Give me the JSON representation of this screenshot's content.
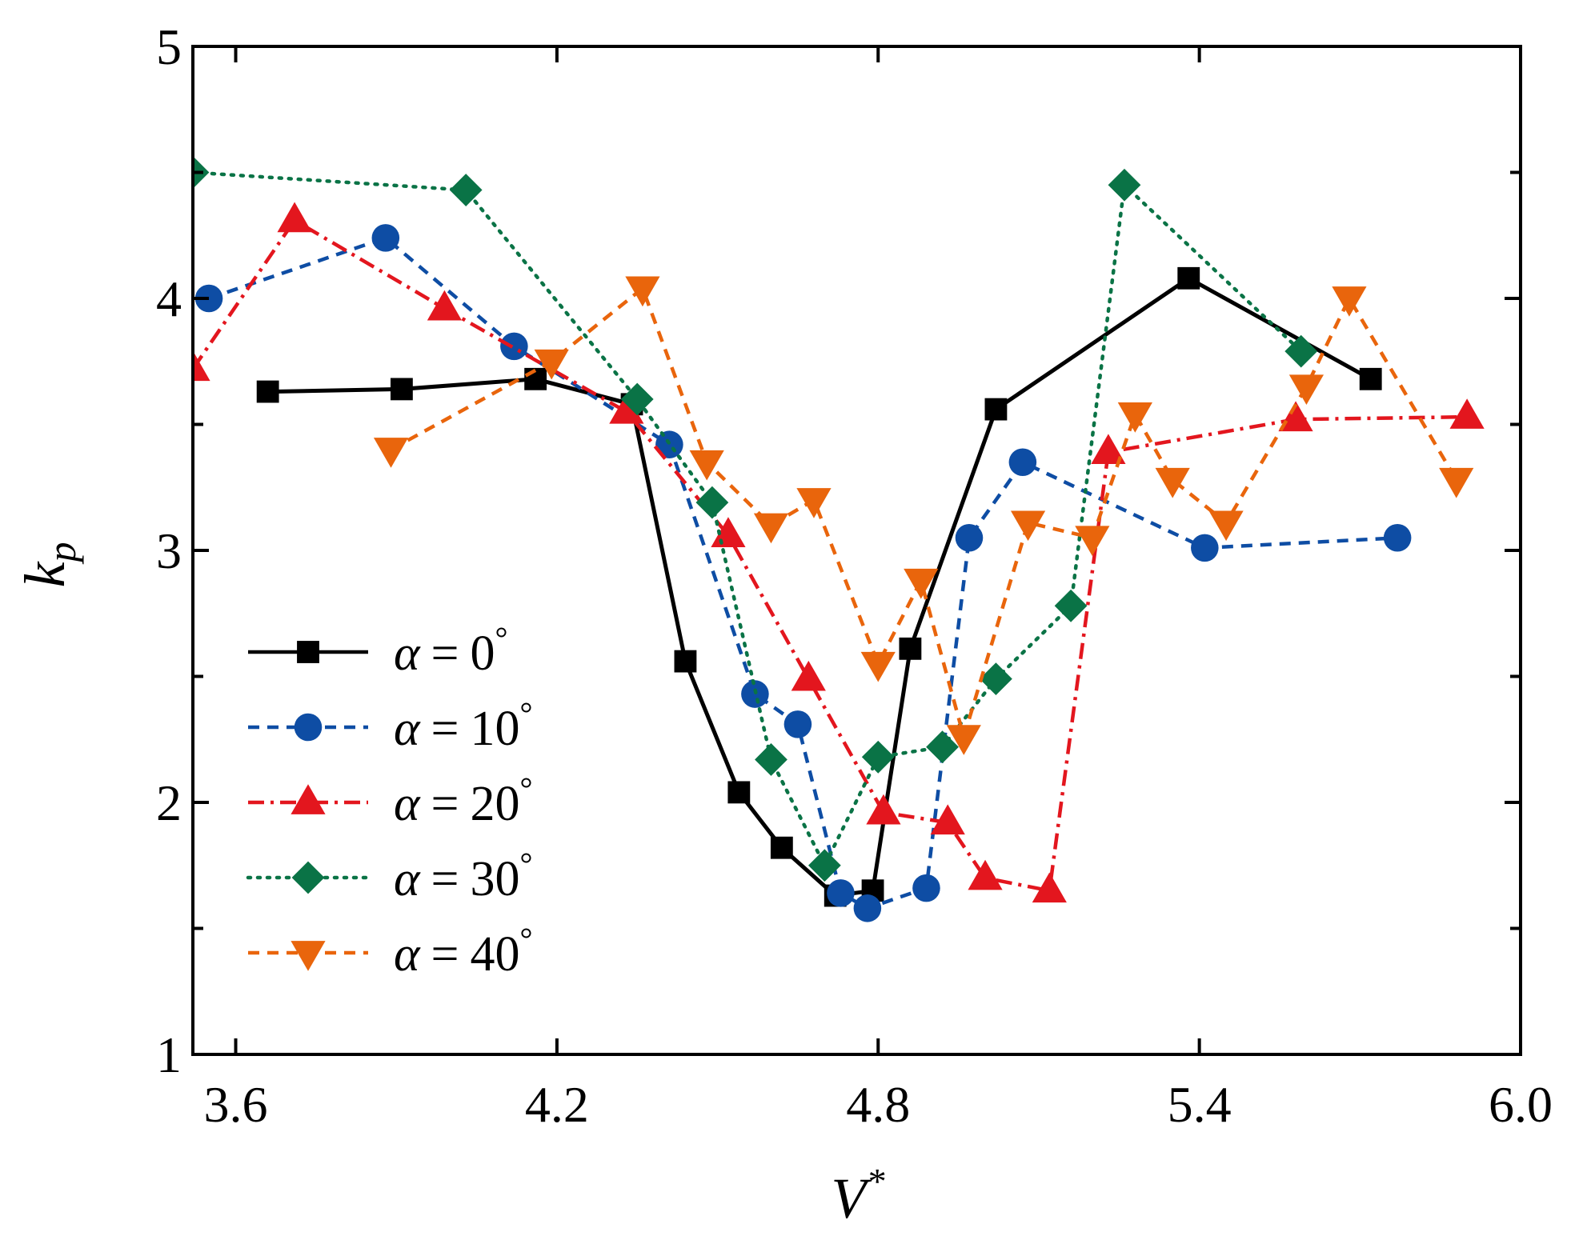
{
  "chart_data": {
    "type": "line",
    "title": "",
    "xlabel": "V",
    "xlabel_superscript": "*",
    "ylabel": "k",
    "ylabel_subscript": "p",
    "xlim": [
      3.52,
      6.0
    ],
    "ylim": [
      1,
      5
    ],
    "xticks": [
      3.6,
      4.2,
      4.8,
      5.4,
      6.0
    ],
    "xtick_labels": [
      "3.6",
      "4.2",
      "4.8",
      "5.4",
      "6.0"
    ],
    "yticks": [
      1,
      2,
      3,
      4,
      5
    ],
    "ytick_labels": [
      "1",
      "2",
      "3",
      "4",
      "5"
    ],
    "minor_y_step": 0.5,
    "grid": false,
    "legend_position": "lower-left",
    "series": [
      {
        "name": "α = 0°",
        "symbol": "α",
        "eq": "=",
        "value": "0",
        "color": "#000000",
        "marker": "square",
        "dash": "",
        "x": [
          3.66,
          3.91,
          4.16,
          4.34,
          4.44,
          4.54,
          4.62,
          4.72,
          4.79,
          4.86,
          5.02,
          5.38,
          5.72
        ],
        "y": [
          3.63,
          3.64,
          3.68,
          3.58,
          2.56,
          2.04,
          1.82,
          1.63,
          1.65,
          2.61,
          3.56,
          4.08,
          3.68
        ]
      },
      {
        "name": "α = 10°",
        "symbol": "α",
        "eq": "=",
        "value": "10",
        "color": "#0e4da4",
        "marker": "circle",
        "dash": "14 10",
        "x": [
          3.55,
          3.88,
          4.12,
          4.41,
          4.57,
          4.65,
          4.73,
          4.78,
          4.89,
          4.97,
          5.07,
          5.41,
          5.77
        ],
        "y": [
          4.0,
          4.24,
          3.81,
          3.42,
          2.43,
          2.31,
          1.64,
          1.58,
          1.66,
          3.05,
          3.35,
          3.01,
          3.05
        ]
      },
      {
        "name": "α = 20°",
        "symbol": "α",
        "eq": "=",
        "value": "20",
        "color": "#e3161e",
        "marker": "triangle-up",
        "dash": "20 8 4 8",
        "x": [
          3.52,
          3.71,
          3.99,
          4.33,
          4.52,
          4.67,
          4.81,
          4.93,
          5.0,
          5.12,
          5.23,
          5.58,
          5.9
        ],
        "y": [
          3.72,
          4.31,
          3.96,
          3.55,
          3.06,
          2.49,
          1.96,
          1.92,
          1.7,
          1.65,
          3.39,
          3.52,
          3.53
        ]
      },
      {
        "name": "α = 30°",
        "symbol": "α",
        "eq": "=",
        "value": "30",
        "color": "#0a7346",
        "marker": "diamond",
        "dash": "3 9",
        "x": [
          3.52,
          4.03,
          4.35,
          4.49,
          4.6,
          4.7,
          4.8,
          4.92,
          5.02,
          5.16,
          5.26,
          5.59
        ],
        "y": [
          4.5,
          4.43,
          3.6,
          3.19,
          2.17,
          1.75,
          2.18,
          2.22,
          2.49,
          2.78,
          4.45,
          3.79
        ]
      },
      {
        "name": "α = 40°",
        "symbol": "α",
        "eq": "=",
        "value": "40",
        "color": "#e9650c",
        "marker": "triangle-down",
        "dash": "14 10",
        "x": [
          3.89,
          4.19,
          4.36,
          4.48,
          4.6,
          4.68,
          4.8,
          4.88,
          4.96,
          5.08,
          5.2,
          5.28,
          5.35,
          5.45,
          5.6,
          5.68,
          5.88
        ],
        "y": [
          3.4,
          3.75,
          4.04,
          3.35,
          3.1,
          3.2,
          2.55,
          2.88,
          2.26,
          3.11,
          3.05,
          3.54,
          3.28,
          3.11,
          3.65,
          4.0,
          3.28
        ]
      }
    ]
  }
}
